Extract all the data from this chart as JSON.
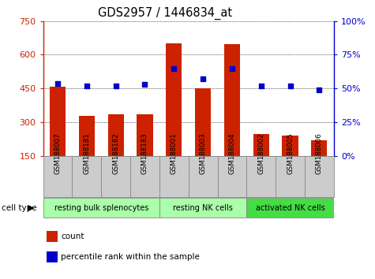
{
  "title": "GDS2957 / 1446834_at",
  "samples": [
    "GSM188007",
    "GSM188181",
    "GSM188182",
    "GSM188183",
    "GSM188001",
    "GSM188003",
    "GSM188004",
    "GSM188002",
    "GSM188005",
    "GSM188006"
  ],
  "counts": [
    460,
    330,
    335,
    335,
    650,
    452,
    648,
    248,
    242,
    220
  ],
  "percentiles": [
    54,
    52,
    52,
    53,
    65,
    57,
    65,
    52,
    52,
    49
  ],
  "groups": [
    {
      "label": "resting bulk splenocytes",
      "start": 0,
      "end": 4
    },
    {
      "label": "resting NK cells",
      "start": 4,
      "end": 7
    },
    {
      "label": "activated NK cells",
      "start": 7,
      "end": 10
    }
  ],
  "group_colors": [
    "#aaffaa",
    "#aaffaa",
    "#44dd44"
  ],
  "ylim_left": [
    150,
    750
  ],
  "yticks_left": [
    150,
    300,
    450,
    600,
    750
  ],
  "ylim_right": [
    0,
    100
  ],
  "yticks_right": [
    0,
    25,
    50,
    75,
    100
  ],
  "bar_color": "#cc2200",
  "dot_color": "#0000cc",
  "bar_width": 0.55,
  "grid_color": "#000000",
  "bg_plot": "#ffffff",
  "left_axis_color": "#cc2200",
  "right_axis_color": "#0000cc",
  "sample_box_color": "#cccccc",
  "legend_items": [
    {
      "label": "count",
      "color": "#cc2200"
    },
    {
      "label": "percentile rank within the sample",
      "color": "#0000cc"
    }
  ]
}
